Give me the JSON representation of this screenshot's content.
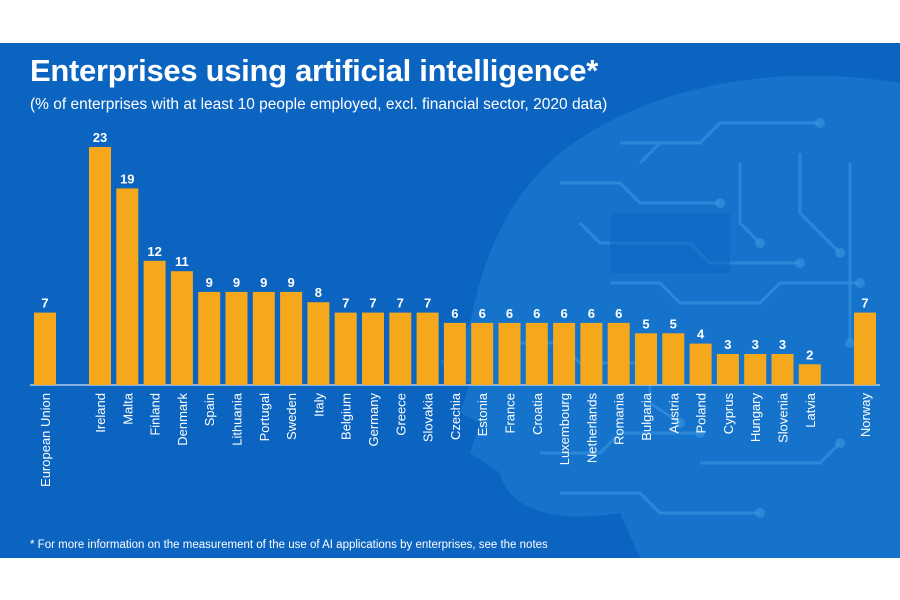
{
  "title": "Enterprises using artificial intelligence*",
  "subtitle": "(% of enterprises with at least 10 people employed, excl. financial sector, 2020 data)",
  "footnote": "* For more information on the measurement of the use of AI applications by enterprises, see the notes",
  "colors": {
    "background": "#0b64c0",
    "bar": "#f5a81c",
    "text": "#ffffff"
  },
  "chart_data": {
    "type": "bar",
    "title": "Enterprises using artificial intelligence*",
    "subtitle": "(% of enterprises with at least 10 people employed, excl. financial sector, 2020 data)",
    "xlabel": "",
    "ylabel": "",
    "ylim": [
      0,
      23
    ],
    "grid": false,
    "categories": [
      "European Union",
      "Ireland",
      "Malta",
      "Finland",
      "Denmark",
      "Spain",
      "Lithuania",
      "Portugal",
      "Sweden",
      "Italy",
      "Belgium",
      "Germany",
      "Greece",
      "Slovakia",
      "Czechia",
      "Estonia",
      "France",
      "Croatia",
      "Luxembourg",
      "Netherlands",
      "Romania",
      "Bulgaria",
      "Austria",
      "Poland",
      "Cyprus",
      "Hungary",
      "Slovenia",
      "Latvia",
      "Norway"
    ],
    "values": [
      7,
      23,
      19,
      12,
      11,
      9,
      9,
      9,
      9,
      8,
      7,
      7,
      7,
      7,
      6,
      6,
      6,
      6,
      6,
      6,
      6,
      5,
      5,
      4,
      3,
      3,
      3,
      2,
      7
    ]
  }
}
